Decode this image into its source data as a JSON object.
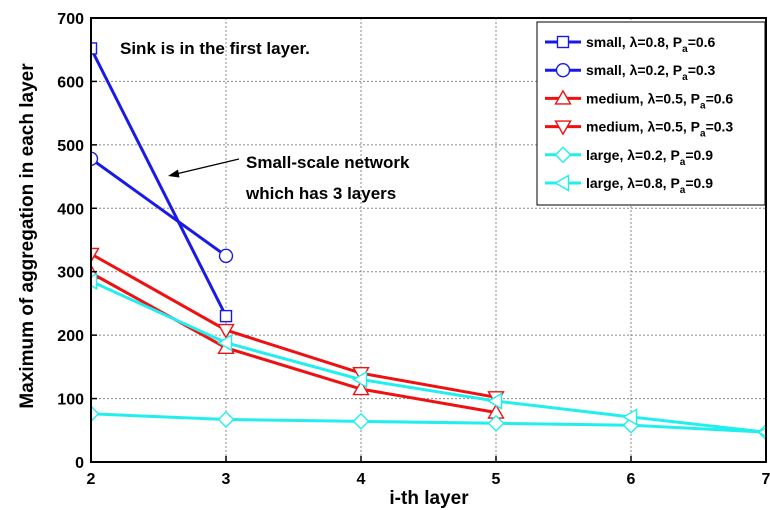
{
  "chart_data": {
    "type": "line",
    "xlabel": "i-th layer",
    "ylabel": "Maximum of aggregation in each layer",
    "xlim": [
      2,
      7
    ],
    "ylim": [
      0,
      700
    ],
    "xticks": [
      2,
      3,
      4,
      5,
      6,
      7
    ],
    "yticks": [
      0,
      100,
      200,
      300,
      400,
      500,
      600,
      700
    ],
    "grid": true,
    "legend_position": "top-right",
    "annotations": [
      {
        "text": "Sink is in the first layer."
      },
      {
        "text": "Small-scale network\nwhich has 3 layers",
        "arrow": true
      }
    ],
    "series": [
      {
        "name": "small, λ=0.8, P",
        "sub": "a",
        "tail": "=0.6",
        "color": "#1a1ae6",
        "marker": "square",
        "x": [
          2,
          3
        ],
        "y": [
          652,
          230
        ]
      },
      {
        "name": "small, λ=0.2, P",
        "sub": "a",
        "tail": "=0.3",
        "color": "#1a1ae6",
        "marker": "circle",
        "x": [
          2,
          3
        ],
        "y": [
          478,
          325
        ]
      },
      {
        "name": "medium, λ=0.5, P",
        "sub": "a",
        "tail": "=0.6",
        "color": "#ee1111",
        "marker": "triangle-up",
        "x": [
          2,
          3,
          4,
          5
        ],
        "y": [
          298,
          180,
          115,
          78
        ]
      },
      {
        "name": "medium, λ=0.5, P",
        "sub": "a",
        "tail": "=0.3",
        "color": "#ee1111",
        "marker": "triangle-down",
        "x": [
          2,
          3,
          4,
          5
        ],
        "y": [
          328,
          208,
          140,
          102
        ]
      },
      {
        "name": "large, λ=0.2, P",
        "sub": "a",
        "tail": "=0.9",
        "color": "#22eeee",
        "marker": "diamond",
        "x": [
          2,
          3,
          4,
          5,
          6,
          7
        ],
        "y": [
          76,
          67,
          64,
          61,
          58,
          47
        ]
      },
      {
        "name": "large, λ=0.8, P",
        "sub": "a",
        "tail": "=0.9",
        "color": "#22eeee",
        "marker": "triangle-left",
        "x": [
          2,
          3,
          4,
          5,
          6,
          7
        ],
        "y": [
          285,
          188,
          130,
          96,
          71,
          47
        ]
      }
    ]
  }
}
